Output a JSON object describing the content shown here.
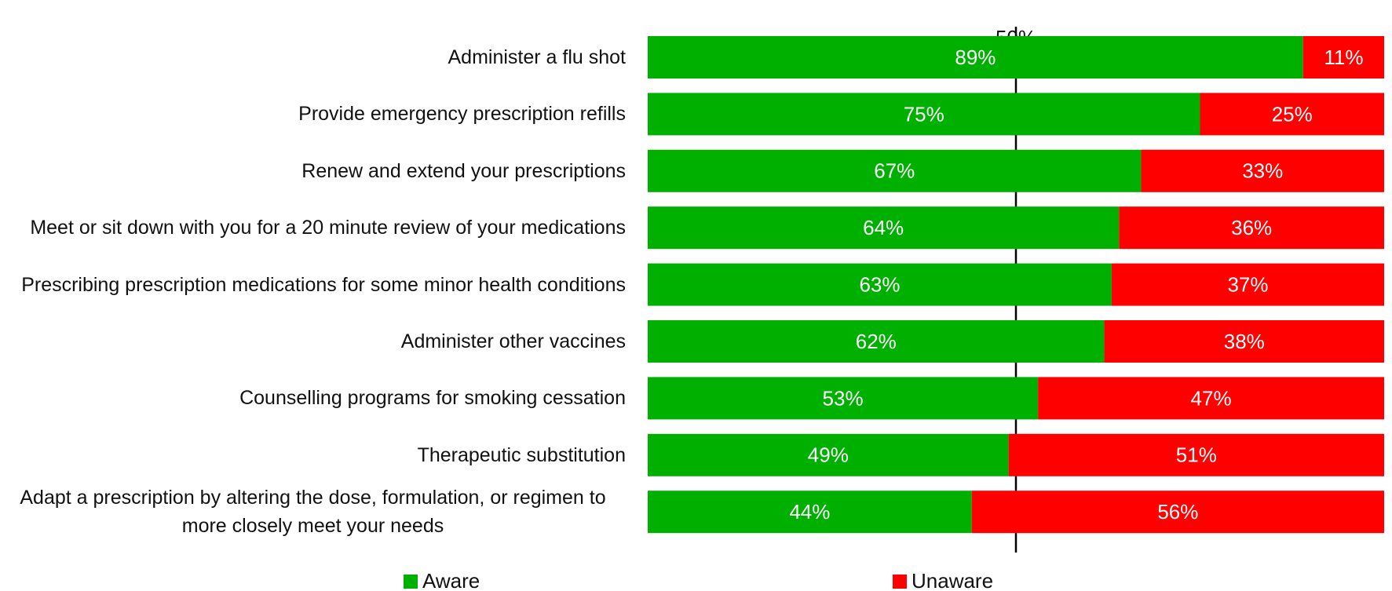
{
  "chart_data": {
    "type": "stacked_barh",
    "categories": [
      "Administer a flu shot",
      "Provide emergency prescription refills",
      "Renew and extend your prescriptions",
      "Meet or sit down with you for a 20 minute review of your medications",
      "Prescribing prescription medications for some minor health conditions",
      "Administer other vaccines",
      "Counselling programs for smoking cessation",
      "Therapeutic substitution",
      "Adapt a prescription by altering the dose, formulation, or regimen to more closely meet your needs"
    ],
    "series": [
      {
        "name": "Aware",
        "color": "#00b000",
        "values": [
          89,
          75,
          67,
          64,
          63,
          62,
          53,
          49,
          44
        ],
        "value_labels": [
          "89%",
          "75%",
          "67%",
          "64%",
          "63%",
          "62%",
          "53%",
          "49%",
          "44%"
        ]
      },
      {
        "name": "Unaware",
        "color": "#ff0000",
        "values": [
          11,
          25,
          33,
          36,
          37,
          38,
          47,
          51,
          56
        ],
        "value_labels": [
          "11%",
          "25%",
          "33%",
          "36%",
          "37%",
          "38%",
          "47%",
          "51%",
          "56%"
        ]
      }
    ],
    "xlim": [
      0,
      100
    ],
    "reference_line": {
      "value": 50,
      "label": "50%"
    },
    "legend": "bottom"
  }
}
